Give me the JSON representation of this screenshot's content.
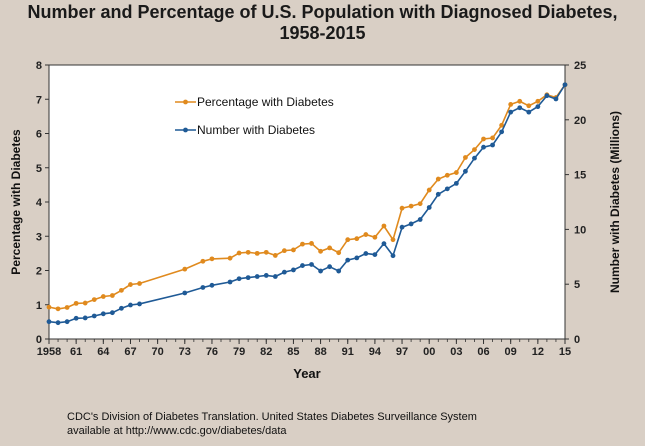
{
  "chart_data": {
    "type": "line",
    "title_line1": "Number and Percentage of U.S. Population with Diagnosed Diabetes,",
    "title_line2": "1958-2015",
    "xlabel": "Year",
    "ylabel_left": "Percentage with Diabetes",
    "ylabel_right": "Number with Diabetes (Millions)",
    "xlim": [
      1958,
      2015
    ],
    "ylim_left": [
      0,
      8
    ],
    "ylim_right": [
      0,
      25
    ],
    "x_tick_labels": [
      "1958",
      "61",
      "64",
      "67",
      "70",
      "73",
      "76",
      "79",
      "82",
      "85",
      "88",
      "91",
      "94",
      "97",
      "00",
      "03",
      "06",
      "09",
      "12",
      "15"
    ],
    "x_tick_years": [
      1958,
      1961,
      1964,
      1967,
      1970,
      1973,
      1976,
      1979,
      1982,
      1985,
      1988,
      1991,
      1994,
      1997,
      2000,
      2003,
      2006,
      2009,
      2012,
      2015
    ],
    "y_left_ticks": [
      "0",
      "1",
      "2",
      "3",
      "4",
      "5",
      "6",
      "7",
      "8"
    ],
    "y_right_ticks": [
      "0",
      "5",
      "10",
      "15",
      "20",
      "25"
    ],
    "legend_position": "upper-left",
    "grid": false,
    "colors": {
      "percentage": "#e08a1e",
      "number": "#1f5a96"
    },
    "series": [
      {
        "name": "Percentage with Diabetes",
        "axis": "left",
        "x": [
          1958,
          1959,
          1960,
          1961,
          1962,
          1963,
          1964,
          1965,
          1966,
          1967,
          1968,
          1973,
          1975,
          1976,
          1978,
          1979,
          1980,
          1981,
          1982,
          1983,
          1984,
          1985,
          1986,
          1987,
          1988,
          1989,
          1990,
          1991,
          1992,
          1993,
          1994,
          1995,
          1996,
          1997,
          1998,
          1999,
          2000,
          2001,
          2002,
          2003,
          2004,
          2005,
          2006,
          2007,
          2008,
          2009,
          2010,
          2011,
          2012,
          2013,
          2014,
          2015
        ],
        "values": [
          0.93,
          0.88,
          0.92,
          1.04,
          1.05,
          1.15,
          1.24,
          1.27,
          1.42,
          1.59,
          1.62,
          2.04,
          2.27,
          2.34,
          2.36,
          2.51,
          2.53,
          2.5,
          2.53,
          2.44,
          2.58,
          2.6,
          2.77,
          2.79,
          2.56,
          2.66,
          2.52,
          2.9,
          2.93,
          3.05,
          2.97,
          3.3,
          2.9,
          3.82,
          3.88,
          3.95,
          4.35,
          4.67,
          4.78,
          4.86,
          5.3,
          5.53,
          5.84,
          5.87,
          6.24,
          6.85,
          6.94,
          6.81,
          6.94,
          7.13,
          7.05,
          7.42
        ]
      },
      {
        "name": "Number with Diabetes",
        "axis": "right",
        "x": [
          1958,
          1959,
          1960,
          1961,
          1962,
          1963,
          1964,
          1965,
          1966,
          1967,
          1968,
          1973,
          1975,
          1976,
          1978,
          1979,
          1980,
          1981,
          1982,
          1983,
          1984,
          1985,
          1986,
          1987,
          1988,
          1989,
          1990,
          1991,
          1992,
          1993,
          1994,
          1995,
          1996,
          1997,
          1998,
          1999,
          2000,
          2001,
          2002,
          2003,
          2004,
          2005,
          2006,
          2007,
          2008,
          2009,
          2010,
          2011,
          2012,
          2013,
          2014,
          2015
        ],
        "values": [
          1.58,
          1.49,
          1.58,
          1.89,
          1.92,
          2.1,
          2.3,
          2.4,
          2.8,
          3.1,
          3.2,
          4.2,
          4.7,
          4.9,
          5.2,
          5.5,
          5.6,
          5.7,
          5.8,
          5.7,
          6.1,
          6.3,
          6.7,
          6.8,
          6.2,
          6.6,
          6.2,
          7.2,
          7.4,
          7.8,
          7.7,
          8.7,
          7.6,
          10.2,
          10.5,
          10.9,
          12.0,
          13.2,
          13.7,
          14.2,
          15.3,
          16.5,
          17.5,
          17.7,
          18.9,
          20.7,
          21.1,
          20.7,
          21.2,
          22.2,
          21.9,
          23.2
        ]
      }
    ]
  },
  "source": {
    "line1": "CDC's Division of Diabetes Translation. United States Diabetes Surveillance System",
    "line2": "available at http://www.cdc.gov/diabetes/data"
  }
}
